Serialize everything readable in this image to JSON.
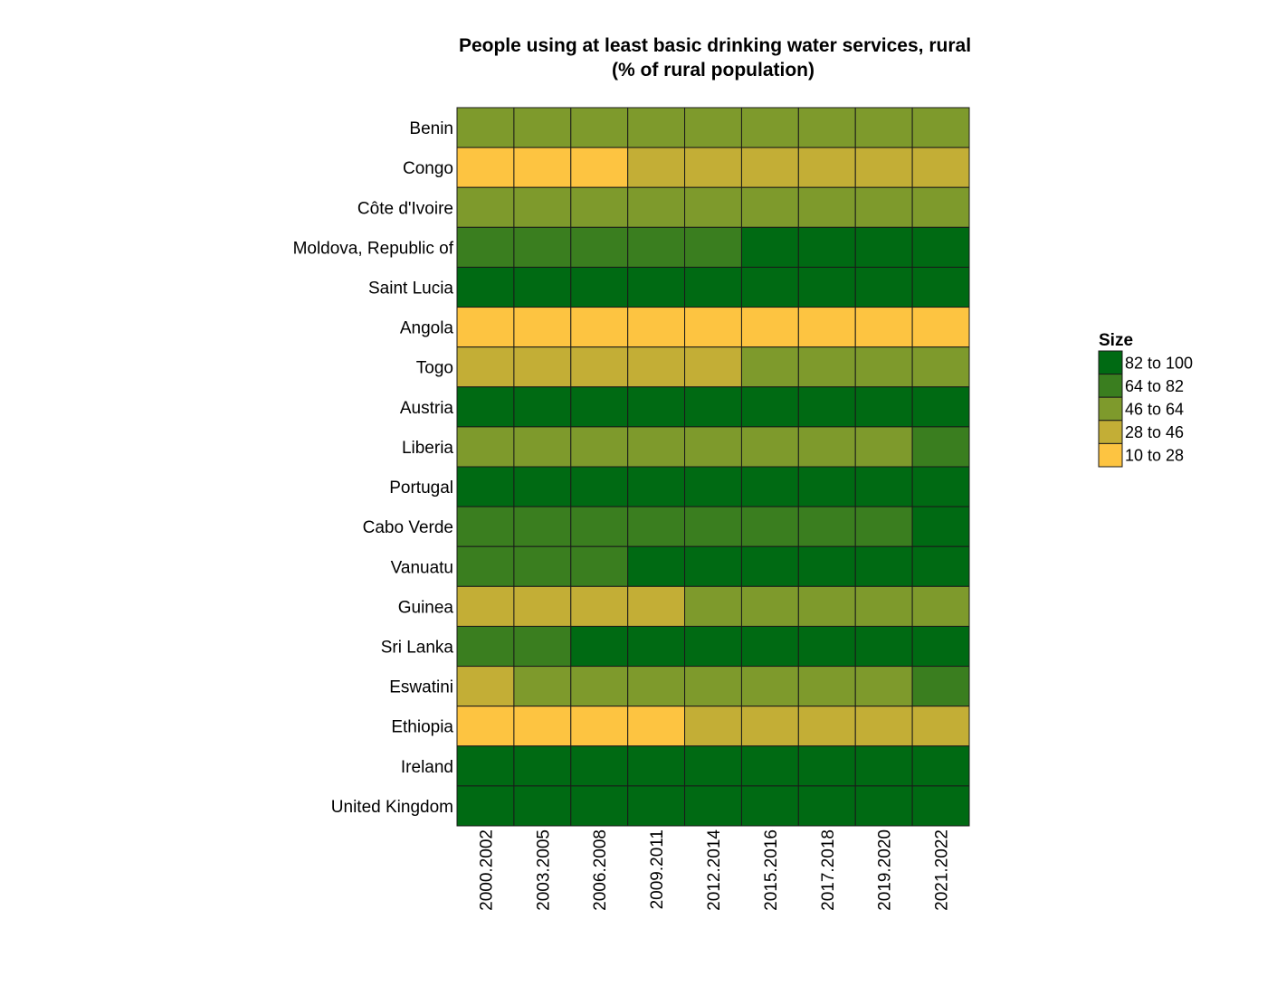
{
  "chart_data": {
    "type": "heatmap",
    "title": "People using at least basic drinking water services, rural",
    "subtitle": "(% of rural population)",
    "rows": [
      "Benin",
      "Congo",
      "Côte d'Ivoire",
      "Moldova, Republic of",
      "Saint Lucia",
      "Angola",
      "Togo",
      "Austria",
      "Liberia",
      "Portugal",
      "Cabo Verde",
      "Vanuatu",
      "Guinea",
      "Sri Lanka",
      "Eswatini",
      "Ethiopia",
      "Ireland",
      "United Kingdom"
    ],
    "columns": [
      "2000.2002",
      "2003.2005",
      "2006.2008",
      "2009.2011",
      "2012.2014",
      "2015.2016",
      "2017.2018",
      "2019.2020",
      "2021.2022"
    ],
    "legend": {
      "title": "Size",
      "placement": "right",
      "bins": [
        {
          "label": "82  to  100",
          "color": "#006a13"
        },
        {
          "label": "64  to  82",
          "color": "#3a7e1f"
        },
        {
          "label": "46  to  64",
          "color": "#7e9a2c"
        },
        {
          "label": "28  to  46",
          "color": "#c3ae36"
        },
        {
          "label": "10  to  28",
          "color": "#fdc441"
        }
      ]
    },
    "bin_order": [
      "10 to 28",
      "28 to 46",
      "46 to 64",
      "64 to 82",
      "82 to 100"
    ],
    "bin_colors": [
      "#fdc441",
      "#c3ae36",
      "#7e9a2c",
      "#3a7e1f",
      "#006a13"
    ],
    "cells": [
      [
        2,
        2,
        2,
        2,
        2,
        2,
        2,
        2,
        2
      ],
      [
        0,
        0,
        0,
        1,
        1,
        1,
        1,
        1,
        1
      ],
      [
        2,
        2,
        2,
        2,
        2,
        2,
        2,
        2,
        2
      ],
      [
        3,
        3,
        3,
        3,
        3,
        4,
        4,
        4,
        4
      ],
      [
        4,
        4,
        4,
        4,
        4,
        4,
        4,
        4,
        4
      ],
      [
        0,
        0,
        0,
        0,
        0,
        0,
        0,
        0,
        0
      ],
      [
        1,
        1,
        1,
        1,
        1,
        2,
        2,
        2,
        2
      ],
      [
        4,
        4,
        4,
        4,
        4,
        4,
        4,
        4,
        4
      ],
      [
        2,
        2,
        2,
        2,
        2,
        2,
        2,
        2,
        3
      ],
      [
        4,
        4,
        4,
        4,
        4,
        4,
        4,
        4,
        4
      ],
      [
        3,
        3,
        3,
        3,
        3,
        3,
        3,
        3,
        4
      ],
      [
        3,
        3,
        3,
        4,
        4,
        4,
        4,
        4,
        4
      ],
      [
        1,
        1,
        1,
        1,
        2,
        2,
        2,
        2,
        2
      ],
      [
        3,
        3,
        4,
        4,
        4,
        4,
        4,
        4,
        4
      ],
      [
        1,
        2,
        2,
        2,
        2,
        2,
        2,
        2,
        3
      ],
      [
        0,
        0,
        0,
        0,
        1,
        1,
        1,
        1,
        1
      ],
      [
        4,
        4,
        4,
        4,
        4,
        4,
        4,
        4,
        4
      ],
      [
        4,
        4,
        4,
        4,
        4,
        4,
        4,
        4,
        4
      ]
    ]
  }
}
